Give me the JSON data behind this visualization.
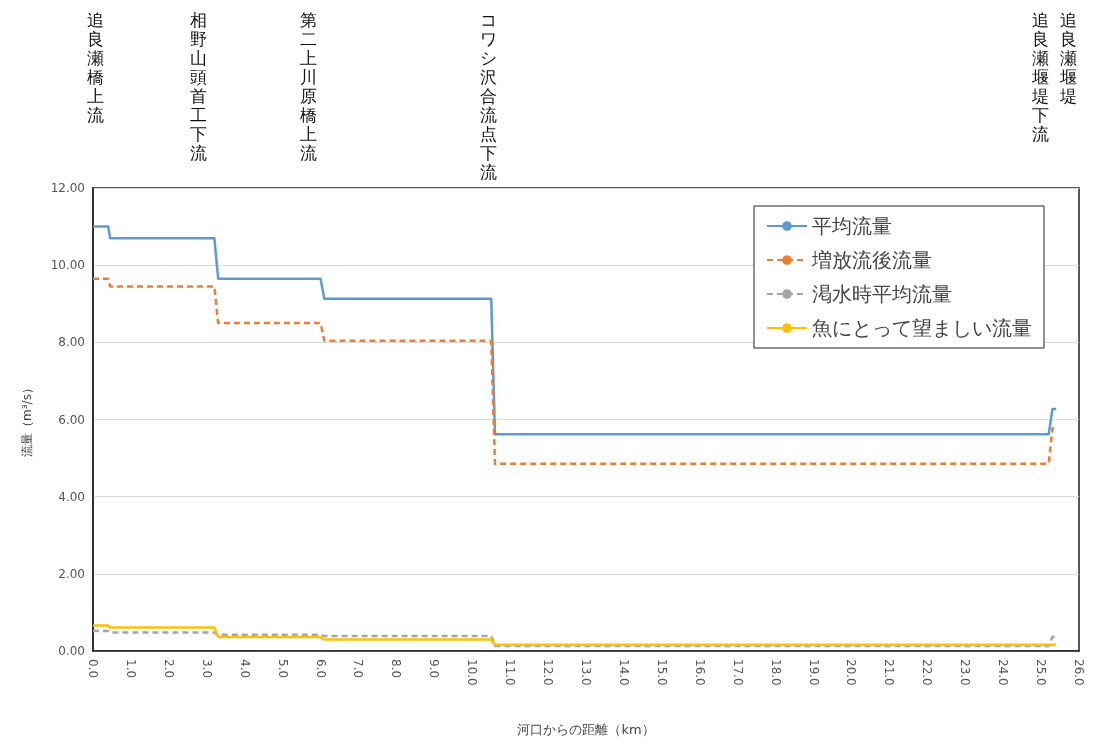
{
  "chart_data": {
    "type": "line",
    "xlabel": "河口からの距離（km）",
    "ylabel": "流量（m³/s）",
    "xlim": [
      0,
      26
    ],
    "ylim": [
      0,
      12
    ],
    "xticks": [
      {
        "value": 0,
        "label": "0.0"
      },
      {
        "value": 1,
        "label": "1.0"
      },
      {
        "value": 2,
        "label": "2.0"
      },
      {
        "value": 3,
        "label": "3.0"
      },
      {
        "value": 4,
        "label": "4.0"
      },
      {
        "value": 5,
        "label": "5.0"
      },
      {
        "value": 6,
        "label": "6.0"
      },
      {
        "value": 7,
        "label": "7.0"
      },
      {
        "value": 8,
        "label": "8.0"
      },
      {
        "value": 9,
        "label": "9.0"
      },
      {
        "value": 10,
        "label": "10.0"
      },
      {
        "value": 11,
        "label": "11.0"
      },
      {
        "value": 12,
        "label": "12.0"
      },
      {
        "value": 13,
        "label": "13.0"
      },
      {
        "value": 14,
        "label": "14.0"
      },
      {
        "value": 15,
        "label": "15.0"
      },
      {
        "value": 16,
        "label": "16.0"
      },
      {
        "value": 17,
        "label": "17.0"
      },
      {
        "value": 18,
        "label": "18.0"
      },
      {
        "value": 19,
        "label": "19.0"
      },
      {
        "value": 20,
        "label": "20.0"
      },
      {
        "value": 21,
        "label": "21.0"
      },
      {
        "value": 22,
        "label": "22.0"
      },
      {
        "value": 23,
        "label": "23.0"
      },
      {
        "value": 24,
        "label": "24.0"
      },
      {
        "value": 25,
        "label": "25.0"
      },
      {
        "value": 26,
        "label": "26.0"
      }
    ],
    "yticks": [
      {
        "value": 0,
        "label": "0.00"
      },
      {
        "value": 2,
        "label": "2.00"
      },
      {
        "value": 4,
        "label": "4.00"
      },
      {
        "value": 6,
        "label": "6.00"
      },
      {
        "value": 8,
        "label": "8.00"
      },
      {
        "value": 10,
        "label": "10.00"
      },
      {
        "value": 12,
        "label": "12.00"
      }
    ],
    "x": [
      0,
      0.4,
      0.45,
      3.2,
      3.3,
      6.0,
      6.1,
      10.5,
      10.6,
      25.2,
      25.3,
      25.4
    ],
    "series": [
      {
        "name": "平均流量",
        "color": "#5b9bd5",
        "line_style": "solid",
        "values": [
          11.0,
          11.0,
          10.7,
          10.7,
          9.65,
          9.65,
          9.13,
          9.13,
          5.62,
          5.62,
          6.27,
          6.27
        ]
      },
      {
        "name": "増放流後流量",
        "color": "#ed7d31",
        "line_style": "dashed",
        "values": [
          9.65,
          9.65,
          9.45,
          9.45,
          8.5,
          8.5,
          8.04,
          8.04,
          4.85,
          4.85,
          5.77,
          5.77
        ]
      },
      {
        "name": "渇水時平均流量",
        "color": "#a5a5a5",
        "line_style": "dashed",
        "values": [
          0.52,
          0.52,
          0.48,
          0.48,
          0.42,
          0.42,
          0.39,
          0.39,
          0.13,
          0.13,
          0.37,
          0.37
        ]
      },
      {
        "name": "魚にとって望ましい流量",
        "color": "#ffc000",
        "line_style": "solid",
        "values": [
          0.66,
          0.66,
          0.61,
          0.61,
          0.36,
          0.36,
          0.3,
          0.3,
          0.16,
          0.16,
          0.16,
          0.16
        ]
      }
    ],
    "annotations": [
      "追良瀬橋上流",
      "相野山頭首工下流",
      "第二上川原橋上流",
      "コワシ沢合流点下流",
      "追良瀬堰堤下流",
      "追良瀬堰堤"
    ],
    "grid": "y",
    "legend": "top right",
    "marker": "none"
  }
}
